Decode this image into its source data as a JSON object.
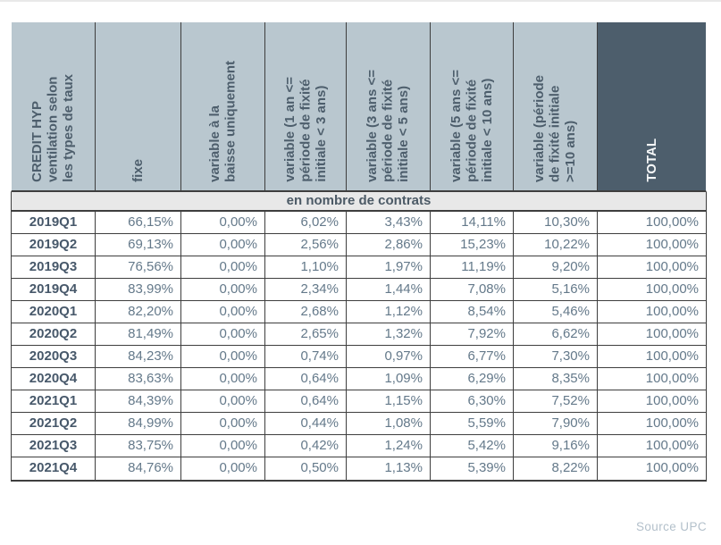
{
  "chart_data": {
    "type": "table",
    "title": "CREDIT HYP\nventilation selon\nles types de taux",
    "subtitle": "en nombre de contrats",
    "columns": [
      "fixe",
      "variable à la\nbaisse uniquement",
      "variable (1 an <=\npériode de fixité\ninitiale < 3 ans)",
      "variable (3 ans <=\npériode de fixité\ninitiale < 5 ans)",
      "variable (5 ans <=\npériode de fixité\ninitiale < 10 ans)",
      "variable (période\nde fixité initiale\n>=10 ans)",
      "TOTAL"
    ],
    "rows": [
      {
        "label": "2019Q1",
        "values": [
          "66,15%",
          "0,00%",
          "6,02%",
          "3,43%",
          "14,11%",
          "10,30%",
          "100,00%"
        ]
      },
      {
        "label": "2019Q2",
        "values": [
          "69,13%",
          "0,00%",
          "2,56%",
          "2,86%",
          "15,23%",
          "10,22%",
          "100,00%"
        ]
      },
      {
        "label": "2019Q3",
        "values": [
          "76,56%",
          "0,00%",
          "1,10%",
          "1,97%",
          "11,19%",
          "9,20%",
          "100,00%"
        ]
      },
      {
        "label": "2019Q4",
        "values": [
          "83,99%",
          "0,00%",
          "2,34%",
          "1,44%",
          "7,08%",
          "5,16%",
          "100,00%"
        ]
      },
      {
        "label": "2020Q1",
        "values": [
          "82,20%",
          "0,00%",
          "2,68%",
          "1,12%",
          "8,54%",
          "5,46%",
          "100,00%"
        ]
      },
      {
        "label": "2020Q2",
        "values": [
          "81,49%",
          "0,00%",
          "2,65%",
          "1,32%",
          "7,92%",
          "6,62%",
          "100,00%"
        ]
      },
      {
        "label": "2020Q3",
        "values": [
          "84,23%",
          "0,00%",
          "0,74%",
          "0,97%",
          "6,77%",
          "7,30%",
          "100,00%"
        ]
      },
      {
        "label": "2020Q4",
        "values": [
          "83,63%",
          "0,00%",
          "0,64%",
          "1,09%",
          "6,29%",
          "8,35%",
          "100,00%"
        ]
      },
      {
        "label": "2021Q1",
        "values": [
          "84,39%",
          "0,00%",
          "0,64%",
          "1,15%",
          "6,30%",
          "7,52%",
          "100,00%"
        ]
      },
      {
        "label": "2021Q2",
        "values": [
          "84,99%",
          "0,00%",
          "0,44%",
          "1,08%",
          "5,59%",
          "7,90%",
          "100,00%"
        ]
      },
      {
        "label": "2021Q3",
        "values": [
          "83,75%",
          "0,00%",
          "0,42%",
          "1,24%",
          "5,42%",
          "9,16%",
          "100,00%"
        ]
      },
      {
        "label": "2021Q4",
        "values": [
          "84,76%",
          "0,00%",
          "0,50%",
          "1,13%",
          "5,39%",
          "8,22%",
          "100,00%"
        ]
      }
    ],
    "source": "Source UPC",
    "colors": {
      "header_bg": "#b9c7cf",
      "header_text": "#4d5e6c",
      "total_bg": "#4d5e6c",
      "total_text": "#f5f7f8",
      "subtitle_bg": "#e8e8e8",
      "row_label_text": "#47586a",
      "value_text": "#64798a",
      "border": "#3e3e3e",
      "source_text": "#b3c0cb"
    }
  }
}
